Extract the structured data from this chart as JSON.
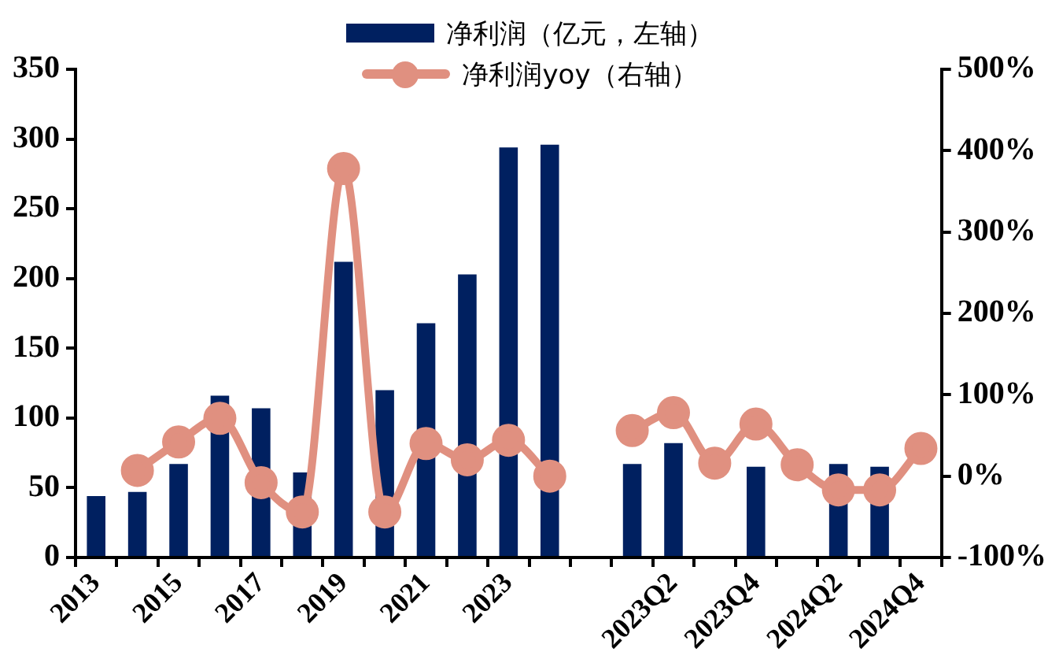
{
  "chart_data": {
    "type": "bar",
    "categories": [
      "2013",
      null,
      "2015",
      null,
      "2017",
      null,
      "2019",
      null,
      "2021",
      null,
      "2023",
      null,
      null,
      null,
      "2023Q2",
      null,
      "2023Q4",
      null,
      "2024Q2",
      null,
      "2024Q4"
    ],
    "series": [
      {
        "name": "净利润（亿元，左轴）",
        "color": "#002060",
        "values": [
          44,
          47,
          67,
          116,
          107,
          61,
          212,
          120,
          168,
          203,
          294,
          296,
          null,
          67,
          82,
          null,
          65,
          null,
          67,
          65,
          null
        ]
      },
      {
        "name": "净利润yoy（右轴）",
        "type": "line",
        "axis": "y2",
        "color": "#e09080",
        "marker": "circle",
        "values": [
          null,
          7,
          42,
          71,
          -8,
          -44,
          378,
          -44,
          40,
          20,
          44,
          0,
          null,
          56,
          78,
          16,
          64,
          14,
          -17,
          -17,
          34
        ]
      }
    ],
    "ylim": [
      0,
      350
    ],
    "yticks": [
      0,
      50,
      100,
      150,
      200,
      250,
      300,
      350
    ],
    "y2lim": [
      -100,
      500
    ],
    "y2ticks": [
      {
        "value": -100,
        "label": "-100%"
      },
      {
        "value": 0,
        "label": "0%"
      },
      {
        "value": 100,
        "label": "100%"
      },
      {
        "value": 200,
        "label": "200%"
      },
      {
        "value": 300,
        "label": "300%"
      },
      {
        "value": 400,
        "label": "400%"
      },
      {
        "value": 500,
        "label": "500%"
      }
    ],
    "grid": false,
    "legend": "top"
  }
}
